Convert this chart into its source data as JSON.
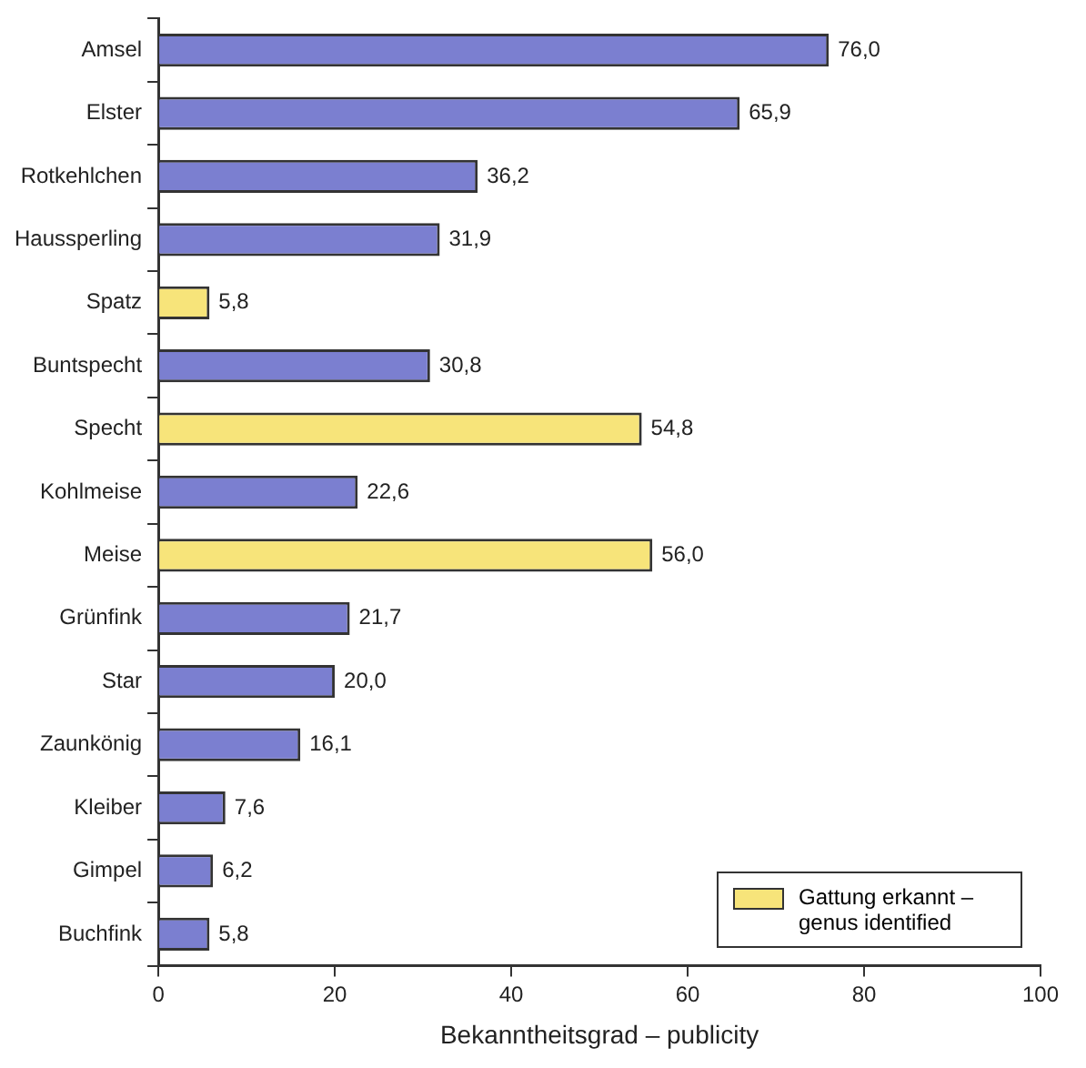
{
  "chart_data": {
    "type": "bar",
    "orientation": "horizontal",
    "xlabel": "Bekanntheitsgrad – publicity",
    "categories": [
      "Amsel",
      "Elster",
      "Rotkehlchen",
      "Haussperling",
      "Spatz",
      "Buntspecht",
      "Specht",
      "Kohlmeise",
      "Meise",
      "Grünfink",
      "Star",
      "Zaunkönig",
      "Kleiber",
      "Gimpel",
      "Buchfink"
    ],
    "series": [
      {
        "color": "#7b7fd0",
        "values": [
          76.0,
          65.9,
          36.2,
          31.9,
          null,
          30.8,
          null,
          22.6,
          null,
          21.7,
          20.0,
          16.1,
          7.6,
          6.2,
          5.8
        ],
        "value_labels": [
          "76,0",
          "65,9",
          "36,2",
          "31,9",
          null,
          "30,8",
          null,
          "22,6",
          null,
          "21,7",
          "20,0",
          "16,1",
          "7,6",
          "6,2",
          "5,8"
        ]
      },
      {
        "name": "Gattung erkannt – genus identified",
        "color": "#f7e47a",
        "values": [
          null,
          null,
          null,
          null,
          5.8,
          null,
          54.8,
          null,
          56.0,
          null,
          null,
          null,
          null,
          null,
          null
        ],
        "value_labels": [
          null,
          null,
          null,
          null,
          "5,8",
          null,
          "54,8",
          null,
          "56,0",
          null,
          null,
          null,
          null,
          null,
          null
        ]
      }
    ],
    "xlim": [
      0,
      100
    ],
    "xticks": [
      0,
      20,
      40,
      60,
      80,
      100
    ],
    "grid": false,
    "legend": "bottom right"
  }
}
